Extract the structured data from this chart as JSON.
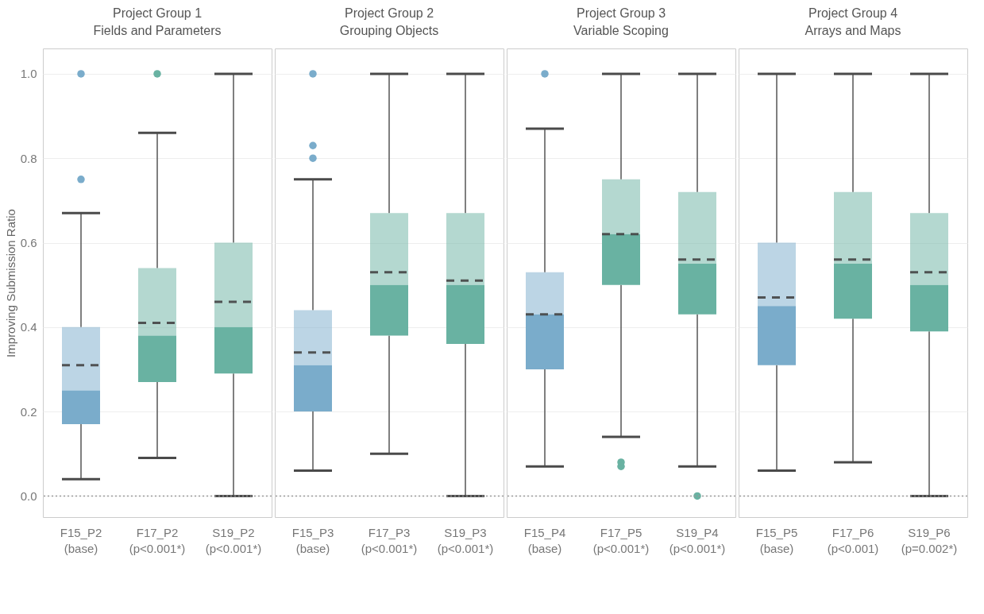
{
  "chart_data": [
    {
      "type": "box",
      "title": "Project Group 1",
      "subtitle": "Fields and Parameters",
      "ylabel": "Improving Submission Ratio",
      "categories": [
        "F15_P2\n(base)",
        "F17_P2\n(p<0.001*)",
        "S19_P2\n(p<0.001*)"
      ],
      "colors": [
        "#7aaccb",
        "#69b2a2",
        "#69b2a2"
      ],
      "boxes": [
        {
          "low": 0.04,
          "q1": 0.17,
          "median": 0.25,
          "q3": 0.4,
          "high": 0.67,
          "mean": 0.31,
          "outliers": [
            0.75,
            1.0
          ]
        },
        {
          "low": 0.09,
          "q1": 0.27,
          "median": 0.38,
          "q3": 0.54,
          "high": 0.86,
          "mean": 0.41,
          "outliers": [
            1.0
          ]
        },
        {
          "low": 0.0,
          "q1": 0.29,
          "median": 0.4,
          "q3": 0.6,
          "high": 1.0,
          "mean": 0.46
        }
      ],
      "ylim": [
        -0.05,
        1.06
      ],
      "yticks": [
        {
          "value": 0,
          "label": "0.0"
        },
        {
          "value": 0.2,
          "label": "0.2"
        },
        {
          "value": 0.4,
          "label": "0.4"
        },
        {
          "value": 0.6,
          "label": "0.6"
        },
        {
          "value": 0.8,
          "label": "0.8"
        },
        {
          "value": 1,
          "label": "1.0"
        }
      ],
      "grid": "y",
      "ref_lines": [
        {
          "axis": "y",
          "value": 0,
          "line_style": "dotted"
        }
      ]
    },
    {
      "type": "box",
      "title": "Project Group 2",
      "subtitle": "Grouping Objects",
      "categories": [
        "F15_P3\n(base)",
        "F17_P3\n(p<0.001*)",
        "S19_P3\n(p<0.001*)"
      ],
      "colors": [
        "#7aaccb",
        "#69b2a2",
        "#69b2a2"
      ],
      "boxes": [
        {
          "low": 0.06,
          "q1": 0.2,
          "median": 0.31,
          "q3": 0.44,
          "high": 0.75,
          "mean": 0.34,
          "outliers": [
            0.8,
            0.83,
            1.0
          ]
        },
        {
          "low": 0.1,
          "q1": 0.38,
          "median": 0.5,
          "q3": 0.67,
          "high": 1.0,
          "mean": 0.53
        },
        {
          "low": 0.0,
          "q1": 0.36,
          "median": 0.5,
          "q3": 0.67,
          "high": 1.0,
          "mean": 0.51
        }
      ],
      "ylim": [
        -0.05,
        1.06
      ],
      "yticks": [
        0,
        0.2,
        0.4,
        0.6,
        0.8,
        1
      ],
      "grid": "y",
      "tick_labels": "x",
      "ref_lines": [
        {
          "axis": "y",
          "value": 0,
          "line_style": "dotted"
        }
      ]
    },
    {
      "type": "box",
      "title": "Project Group 3",
      "subtitle": "Variable Scoping",
      "categories": [
        "F15_P4\n(base)",
        "F17_P5\n(p<0.001*)",
        "S19_P4\n(p<0.001*)"
      ],
      "colors": [
        "#7aaccb",
        "#69b2a2",
        "#69b2a2"
      ],
      "boxes": [
        {
          "low": 0.07,
          "q1": 0.3,
          "median": 0.43,
          "q3": 0.53,
          "high": 0.87,
          "mean": 0.43,
          "outliers": [
            1.0
          ]
        },
        {
          "low": 0.14,
          "q1": 0.5,
          "median": 0.62,
          "q3": 0.75,
          "high": 1.0,
          "mean": 0.62,
          "outliers": [
            0.07,
            0.08
          ]
        },
        {
          "low": 0.07,
          "q1": 0.43,
          "median": 0.55,
          "q3": 0.72,
          "high": 1.0,
          "mean": 0.56,
          "outliers": [
            0.0
          ]
        }
      ],
      "ylim": [
        -0.05,
        1.06
      ],
      "yticks": [
        0,
        0.2,
        0.4,
        0.6,
        0.8,
        1
      ],
      "grid": "y",
      "tick_labels": "x",
      "ref_lines": [
        {
          "axis": "y",
          "value": 0,
          "line_style": "dotted"
        }
      ]
    },
    {
      "type": "box",
      "title": "Project Group 4",
      "subtitle": "Arrays and Maps",
      "categories": [
        "F15_P5\n(base)",
        "F17_P6\n(p<0.001)",
        "S19_P6\n(p=0.002*)"
      ],
      "colors": [
        "#7aaccb",
        "#69b2a2",
        "#69b2a2"
      ],
      "boxes": [
        {
          "low": 0.06,
          "q1": 0.31,
          "median": 0.45,
          "q3": 0.6,
          "high": 1.0,
          "mean": 0.47
        },
        {
          "low": 0.08,
          "q1": 0.42,
          "median": 0.55,
          "q3": 0.72,
          "high": 1.0,
          "mean": 0.56
        },
        {
          "low": 0.0,
          "q1": 0.39,
          "median": 0.5,
          "q3": 0.67,
          "high": 1.0,
          "mean": 0.53
        }
      ],
      "ylim": [
        -0.05,
        1.06
      ],
      "yticks": [
        0,
        0.2,
        0.4,
        0.6,
        0.8,
        1
      ],
      "grid": "y",
      "tick_labels": "x",
      "ref_lines": [
        {
          "axis": "y",
          "value": 0,
          "line_style": "dotted"
        }
      ]
    }
  ]
}
